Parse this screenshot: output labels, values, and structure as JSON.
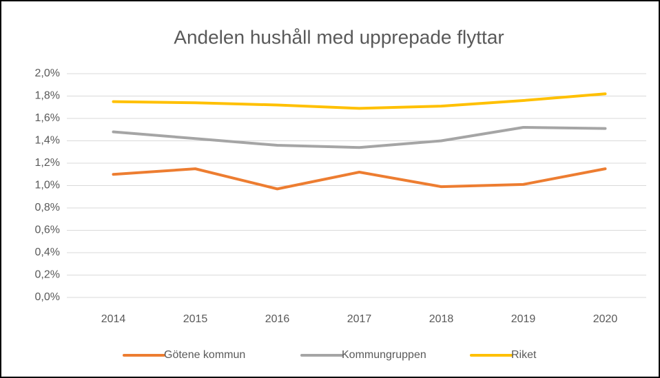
{
  "chart_data": {
    "type": "line",
    "title": "Andelen hushåll med upprepade flyttar",
    "categories": [
      "2014",
      "2015",
      "2016",
      "2017",
      "2018",
      "2019",
      "2020"
    ],
    "series": [
      {
        "name": "Götene kommun",
        "color": "#ed7d31",
        "values": [
          1.1,
          1.15,
          0.97,
          1.12,
          0.99,
          1.01,
          1.15
        ]
      },
      {
        "name": "Kommungruppen",
        "color": "#a5a5a5",
        "values": [
          1.48,
          1.42,
          1.36,
          1.34,
          1.4,
          1.52,
          1.51
        ]
      },
      {
        "name": "Riket",
        "color": "#ffc000",
        "values": [
          1.75,
          1.74,
          1.72,
          1.69,
          1.71,
          1.76,
          1.82
        ]
      }
    ],
    "ylim": [
      0,
      2.0
    ],
    "yticks": [
      {
        "value": 0,
        "label": "0,0%"
      },
      {
        "value": 0.2,
        "label": "0,2%"
      },
      {
        "value": 0.4,
        "label": "0,4%"
      },
      {
        "value": 0.6,
        "label": "0,6%"
      },
      {
        "value": 0.8,
        "label": "0,8%"
      },
      {
        "value": 1.0,
        "label": "1,0%"
      },
      {
        "value": 1.2,
        "label": "1,2%"
      },
      {
        "value": 1.4,
        "label": "1,4%"
      },
      {
        "value": 1.6,
        "label": "1,6%"
      },
      {
        "value": 1.8,
        "label": "1,8%"
      },
      {
        "value": 2.0,
        "label": "2,0%"
      }
    ],
    "grid": true,
    "legend": "bottom"
  }
}
